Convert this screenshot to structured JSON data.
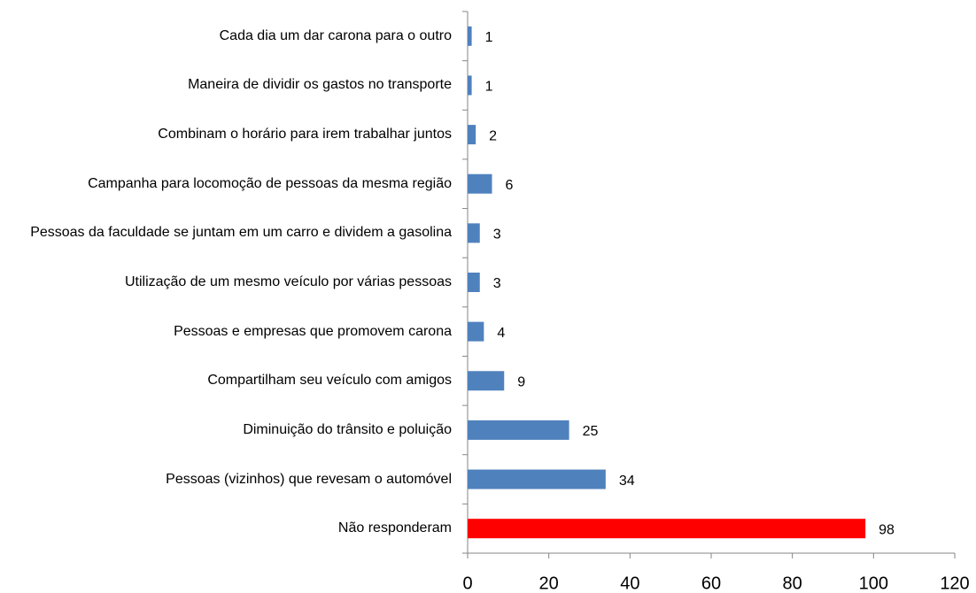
{
  "chart_data": {
    "type": "bar",
    "orientation": "horizontal",
    "categories": [
      "Cada dia um dar carona para o outro",
      "Maneira de dividir os gastos no transporte",
      "Combinam o horário para irem trabalhar juntos",
      "Campanha para locomoção de pessoas da mesma região",
      "Pessoas da faculdade se juntam em um carro e dividem a gasolina",
      "Utilização de um mesmo veículo por várias pessoas",
      "Pessoas e empresas que promovem carona",
      "Compartilham seu veículo com amigos",
      "Diminuição do trânsito e poluição",
      "Pessoas (vizinhos) que  revesam o  automóvel",
      "Não responderam"
    ],
    "values": [
      1,
      1,
      2,
      6,
      3,
      3,
      4,
      9,
      25,
      34,
      98
    ],
    "colors": [
      "#4f81bd",
      "#4f81bd",
      "#4f81bd",
      "#4f81bd",
      "#4f81bd",
      "#4f81bd",
      "#4f81bd",
      "#4f81bd",
      "#4f81bd",
      "#4f81bd",
      "#ff0000"
    ],
    "xlim": [
      0,
      120
    ],
    "xticks": [
      0,
      20,
      40,
      60,
      80,
      100,
      120
    ],
    "grid": false
  }
}
